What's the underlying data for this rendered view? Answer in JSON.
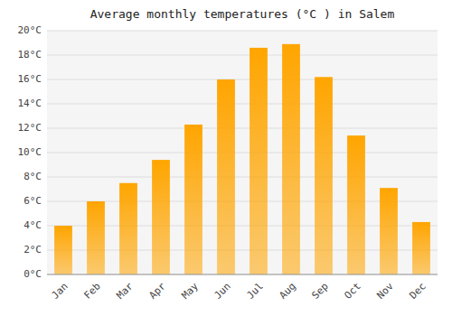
{
  "chart_data": {
    "type": "bar",
    "title": "Average monthly temperatures (°C ) in Salem",
    "categories": [
      "Jan",
      "Feb",
      "Mar",
      "Apr",
      "May",
      "Jun",
      "Jul",
      "Aug",
      "Sep",
      "Oct",
      "Nov",
      "Dec"
    ],
    "values": [
      4.0,
      6.0,
      7.5,
      9.4,
      12.3,
      16.0,
      18.6,
      18.9,
      16.2,
      11.4,
      7.1,
      4.3
    ],
    "color": "#FFA500",
    "ylim": [
      0,
      20
    ],
    "yticks": [
      {
        "value": 0,
        "label": "0°C"
      },
      {
        "value": 2,
        "label": "2°C"
      },
      {
        "value": 4,
        "label": "4°C"
      },
      {
        "value": 6,
        "label": "6°C"
      },
      {
        "value": 8,
        "label": "8°C"
      },
      {
        "value": 10,
        "label": "10°C"
      },
      {
        "value": 12,
        "label": "12°C"
      },
      {
        "value": 14,
        "label": "14°C"
      },
      {
        "value": 16,
        "label": "16°C"
      },
      {
        "value": 18,
        "label": "18°C"
      },
      {
        "value": 20,
        "label": "20°C"
      }
    ],
    "grid": true
  }
}
